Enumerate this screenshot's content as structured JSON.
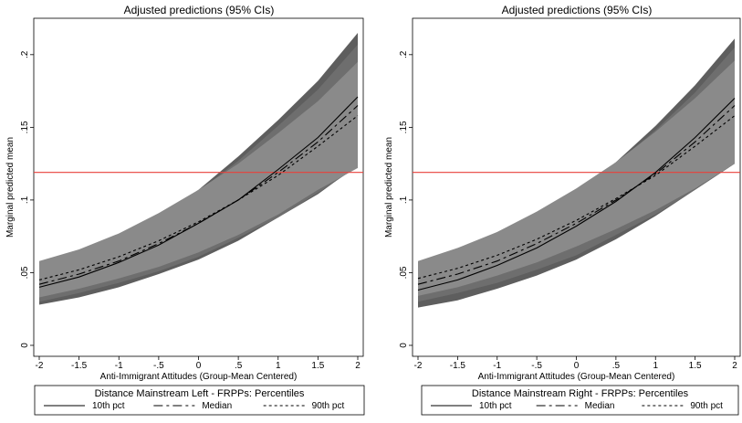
{
  "chart_data": [
    {
      "type": "line",
      "title": "Adjusted predictions (95% CIs)",
      "xlabel": "Anti-Immigrant Attitudes (Group-Mean Centered)",
      "ylabel": "Marginal predicted mean",
      "x": [
        -2,
        -1.5,
        -1,
        -0.5,
        0,
        0.5,
        1,
        1.5,
        2
      ],
      "xticks": [
        "-2",
        "-1.5",
        "-1",
        "-.5",
        "0",
        ".5",
        "1",
        "1.5",
        "2"
      ],
      "yticks": [
        "0",
        ".05",
        ".1",
        ".15",
        ".2"
      ],
      "ytick_values": [
        0,
        0.05,
        0.1,
        0.15,
        0.2
      ],
      "xlim": [
        -2,
        2
      ],
      "ylim": [
        0,
        0.22
      ],
      "reference_line": {
        "y": 0.119,
        "color": "#e8403a"
      },
      "legend_title": "Distance Mainstream Left - FRPPs: Percentiles",
      "legend_position": "bottom",
      "series": [
        {
          "name": "10th pct",
          "dash": "solid",
          "values": [
            0.04,
            0.047,
            0.057,
            0.069,
            0.084,
            0.1,
            0.121,
            0.143,
            0.171
          ],
          "lower": [
            0.028,
            0.033,
            0.04,
            0.049,
            0.059,
            0.072,
            0.088,
            0.104,
            0.124
          ],
          "upper": [
            0.053,
            0.062,
            0.073,
            0.088,
            0.107,
            0.13,
            0.155,
            0.182,
            0.215
          ]
        },
        {
          "name": "Median",
          "dash": "longdash",
          "values": [
            0.042,
            0.049,
            0.058,
            0.07,
            0.084,
            0.1,
            0.119,
            0.14,
            0.165
          ],
          "lower": [
            0.03,
            0.036,
            0.043,
            0.051,
            0.061,
            0.074,
            0.088,
            0.105,
            0.123
          ],
          "upper": [
            0.055,
            0.063,
            0.074,
            0.088,
            0.106,
            0.127,
            0.151,
            0.176,
            0.207
          ]
        },
        {
          "name": "90th pct",
          "dash": "shortdash",
          "values": [
            0.045,
            0.052,
            0.061,
            0.072,
            0.085,
            0.1,
            0.117,
            0.137,
            0.158
          ],
          "lower": [
            0.033,
            0.039,
            0.046,
            0.054,
            0.064,
            0.076,
            0.09,
            0.107,
            0.122
          ],
          "upper": [
            0.058,
            0.066,
            0.077,
            0.091,
            0.107,
            0.125,
            0.146,
            0.168,
            0.195
          ]
        }
      ],
      "band_colors": [
        "#5e5e5e",
        "#6e6e6e",
        "#8a8a8a"
      ]
    },
    {
      "type": "line",
      "title": "Adjusted predictions (95% CIs)",
      "xlabel": "Anti-Immigrant Attitudes (Group-Mean Centered)",
      "ylabel": "Marginal predicted mean",
      "x": [
        -2,
        -1.5,
        -1,
        -0.5,
        0,
        0.5,
        1,
        1.5,
        2
      ],
      "xticks": [
        "-2",
        "-1.5",
        "-1",
        "-.5",
        "0",
        ".5",
        "1",
        "1.5",
        "2"
      ],
      "yticks": [
        "0",
        ".05",
        ".1",
        ".15",
        ".2"
      ],
      "ytick_values": [
        0,
        0.05,
        0.1,
        0.15,
        0.2
      ],
      "xlim": [
        -2,
        2
      ],
      "ylim": [
        0,
        0.22
      ],
      "reference_line": {
        "y": 0.119,
        "color": "#e8403a"
      },
      "legend_title": "Distance Mainstream Right - FRPPs: Percentiles",
      "legend_position": "bottom",
      "series": [
        {
          "name": "10th pct",
          "dash": "solid",
          "values": [
            0.038,
            0.045,
            0.055,
            0.067,
            0.082,
            0.099,
            0.119,
            0.143,
            0.17
          ],
          "lower": [
            0.026,
            0.031,
            0.039,
            0.048,
            0.059,
            0.073,
            0.089,
            0.107,
            0.125
          ],
          "upper": [
            0.05,
            0.059,
            0.071,
            0.086,
            0.105,
            0.126,
            0.151,
            0.179,
            0.211
          ]
        },
        {
          "name": "Median",
          "dash": "longdash",
          "values": [
            0.042,
            0.049,
            0.058,
            0.07,
            0.084,
            0.1,
            0.118,
            0.14,
            0.165
          ],
          "lower": [
            0.03,
            0.036,
            0.043,
            0.052,
            0.062,
            0.076,
            0.09,
            0.107,
            0.125
          ],
          "upper": [
            0.054,
            0.063,
            0.074,
            0.088,
            0.106,
            0.125,
            0.148,
            0.174,
            0.205
          ]
        },
        {
          "name": "90th pct",
          "dash": "shortdash",
          "values": [
            0.046,
            0.053,
            0.062,
            0.073,
            0.086,
            0.101,
            0.117,
            0.137,
            0.158
          ],
          "lower": [
            0.034,
            0.04,
            0.048,
            0.057,
            0.068,
            0.08,
            0.093,
            0.108,
            0.125
          ],
          "upper": [
            0.058,
            0.067,
            0.078,
            0.092,
            0.108,
            0.126,
            0.147,
            0.17,
            0.196
          ]
        }
      ],
      "band_colors": [
        "#5e5e5e",
        "#6e6e6e",
        "#8a8a8a"
      ]
    }
  ]
}
